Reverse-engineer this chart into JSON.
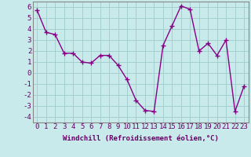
{
  "x": [
    0,
    1,
    2,
    3,
    4,
    5,
    6,
    7,
    8,
    9,
    10,
    11,
    12,
    13,
    14,
    15,
    16,
    17,
    18,
    19,
    20,
    21,
    22,
    23
  ],
  "y": [
    5.7,
    3.7,
    3.5,
    1.8,
    1.8,
    1.0,
    0.9,
    1.6,
    1.6,
    0.7,
    -0.6,
    -2.5,
    -3.4,
    -3.5,
    2.5,
    4.3,
    6.1,
    5.8,
    2.0,
    2.7,
    1.6,
    3.0,
    -3.5,
    -1.2
  ],
  "line_color": "#880088",
  "marker": "+",
  "marker_size": 4,
  "bg_color": "#c8eaea",
  "grid_color": "#a0cccc",
  "xlabel": "Windchill (Refroidissement éolien,°C)",
  "xlim": [
    -0.5,
    23.5
  ],
  "ylim": [
    -4.5,
    6.5
  ],
  "xticks": [
    0,
    1,
    2,
    3,
    4,
    5,
    6,
    7,
    8,
    9,
    10,
    11,
    12,
    13,
    14,
    15,
    16,
    17,
    18,
    19,
    20,
    21,
    22,
    23
  ],
  "yticks": [
    -4,
    -3,
    -2,
    -1,
    0,
    1,
    2,
    3,
    4,
    5,
    6
  ],
  "xlabel_fontsize": 6.5,
  "tick_fontsize": 6.5,
  "tick_color": "#660066",
  "linewidth": 1.0
}
